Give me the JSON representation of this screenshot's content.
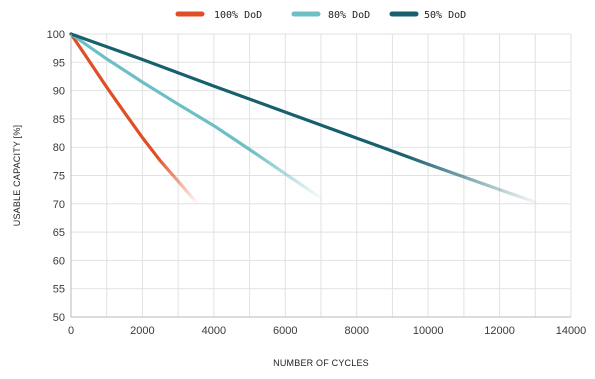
{
  "chart_data": {
    "type": "line",
    "title": "",
    "xlabel": "NUMBER OF CYCLES",
    "ylabel": "USABLE CAPACITY [%]",
    "xlim": [
      0,
      14000
    ],
    "ylim": [
      50,
      100
    ],
    "xticks": [
      "0",
      "2000",
      "4000",
      "6000",
      "8000",
      "10000",
      "12000",
      "14000"
    ],
    "yticks": [
      "50",
      "55",
      "60",
      "65",
      "70",
      "75",
      "80",
      "85",
      "90",
      "95",
      "100"
    ],
    "grid": true,
    "legend_position": "top-center",
    "series": [
      {
        "name": "100% DoD",
        "color": "#e04e26",
        "x": [
          0,
          500,
          1000,
          1500,
          2000,
          2500,
          3000,
          3500
        ],
        "y": [
          100,
          95.3,
          90.6,
          86.1,
          81.7,
          77.6,
          74.0,
          70.3
        ]
      },
      {
        "name": "80% DoD",
        "color": "#6dbfc6",
        "x": [
          0,
          1000,
          2000,
          3000,
          4000,
          5000,
          6000,
          7000
        ],
        "y": [
          100,
          95.6,
          91.5,
          87.6,
          83.8,
          79.6,
          75.3,
          71.0
        ]
      },
      {
        "name": "50% DoD",
        "color": "#17606e",
        "x": [
          0,
          2000,
          4000,
          6000,
          8000,
          10000,
          12000,
          13000
        ],
        "y": [
          100,
          95.5,
          90.8,
          86.2,
          81.6,
          77.0,
          72.5,
          70.3
        ]
      }
    ]
  }
}
